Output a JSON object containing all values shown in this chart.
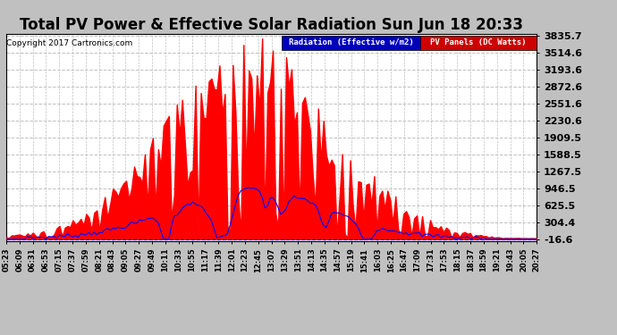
{
  "title": "Total PV Power & Effective Solar Radiation Sun Jun 18 20:33",
  "copyright": "Copyright 2017 Cartronics.com",
  "legend_radiation": "Radiation (Effective w/m2)",
  "legend_pv": "PV Panels (DC Watts)",
  "legend_radiation_bg": "#0000cc",
  "legend_pv_bg": "#cc0000",
  "background_color": "#c0c0c0",
  "plot_bg_color": "#ffffff",
  "yticks": [
    3835.7,
    3514.6,
    3193.6,
    2872.6,
    2551.6,
    2230.6,
    1909.5,
    1588.5,
    1267.5,
    946.5,
    625.5,
    304.4,
    -16.6
  ],
  "ymin": -16.6,
  "ymax": 3835.7,
  "grid_color": "#c0c0c0",
  "title_fontsize": 12,
  "tick_label_fontsize": 6,
  "ytick_fontsize": 8,
  "num_points": 200,
  "x_tick_labels": [
    "05:23",
    "06:09",
    "06:31",
    "06:53",
    "07:15",
    "07:37",
    "07:59",
    "08:21",
    "08:43",
    "09:05",
    "09:27",
    "09:49",
    "10:11",
    "10:33",
    "10:55",
    "11:17",
    "11:39",
    "12:01",
    "12:23",
    "12:45",
    "13:07",
    "13:29",
    "13:51",
    "14:13",
    "14:35",
    "14:57",
    "15:19",
    "15:41",
    "16:03",
    "16:25",
    "16:47",
    "17:09",
    "17:31",
    "17:53",
    "18:15",
    "18:37",
    "18:59",
    "19:21",
    "19:43",
    "20:05",
    "20:27"
  ]
}
